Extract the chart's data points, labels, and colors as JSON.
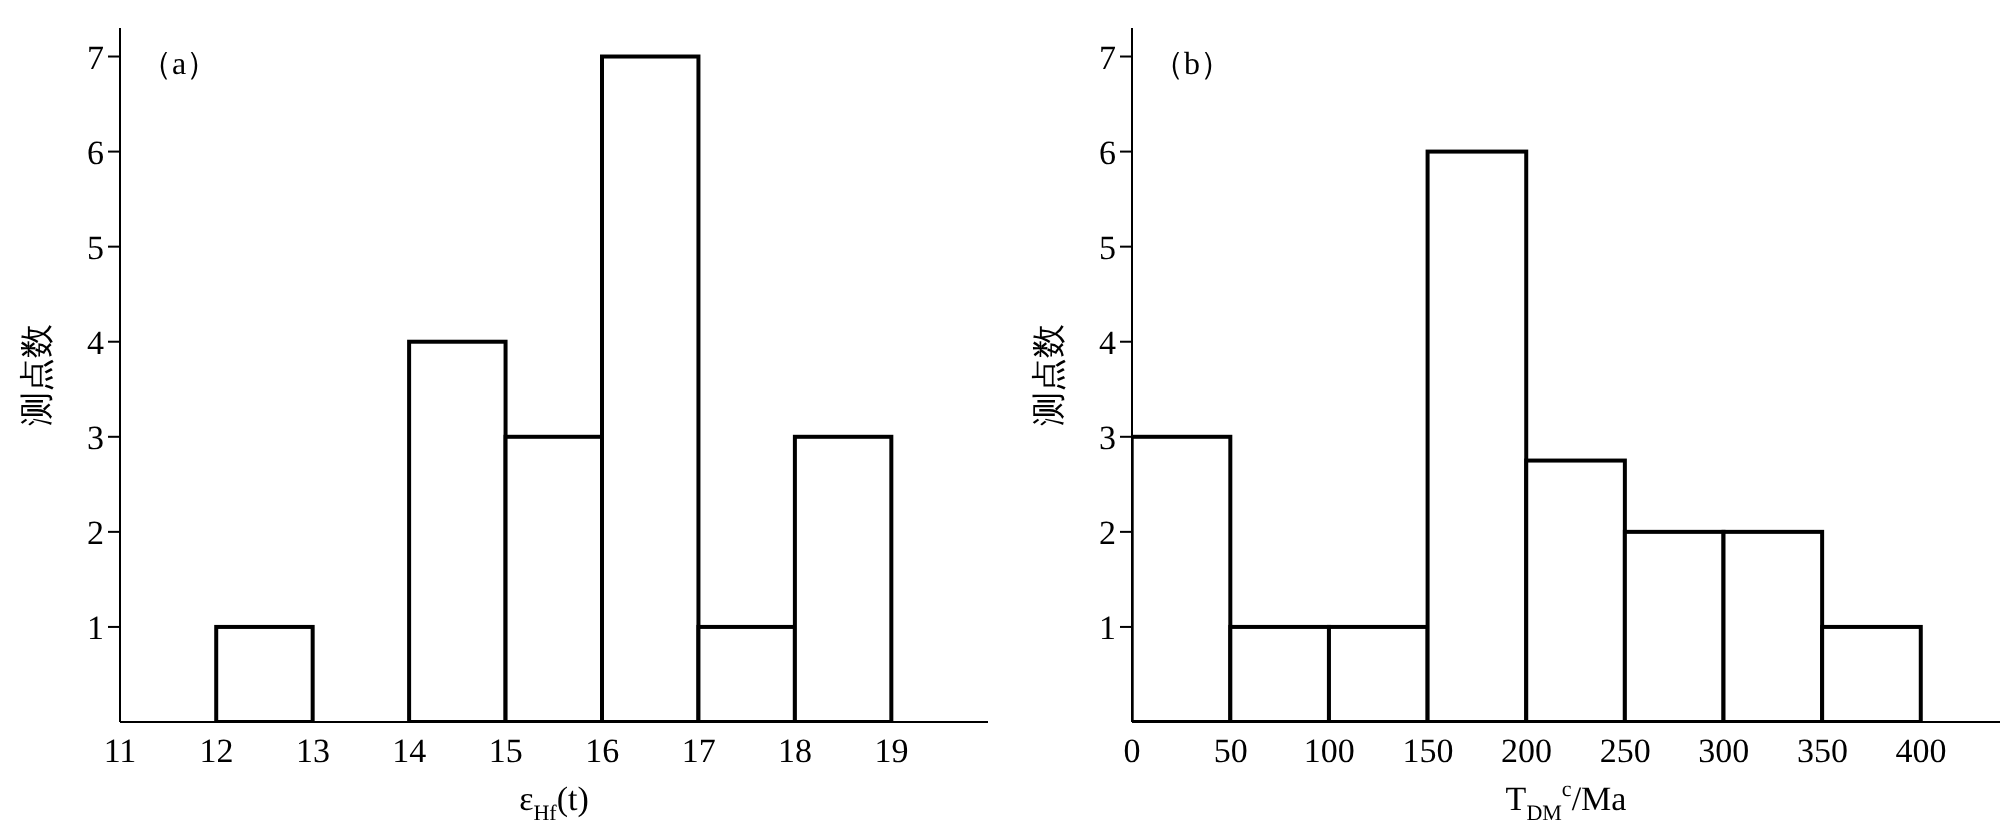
{
  "chart_data": [
    {
      "type": "histogram",
      "annotations": [
        "（a）"
      ],
      "xlabel": "ε$_{Hf}$(t)",
      "ylabel": "测点数",
      "bins": [
        12,
        13,
        14,
        15,
        16,
        17,
        18,
        19
      ],
      "values": [
        1,
        0,
        4,
        3,
        7,
        1,
        3
      ],
      "color": "#ffffff",
      "xlim": [
        11,
        20
      ],
      "xticks": [
        11,
        12,
        13,
        14,
        15,
        16,
        17,
        18,
        19
      ],
      "ylim": [
        0,
        7.3
      ],
      "yticks": [
        1,
        2,
        3,
        4,
        5,
        6,
        7
      ]
    },
    {
      "type": "histogram",
      "annotations": [
        "（b）"
      ],
      "xlabel": "T$_{DM}$$^{c}$/Ma",
      "ylabel": "测点数",
      "bins": [
        0,
        50,
        100,
        150,
        200,
        250,
        300,
        350,
        400
      ],
      "values": [
        3,
        1,
        1,
        6,
        2.75,
        2,
        2,
        1
      ],
      "color": "#ffffff",
      "xlim": [
        0,
        440
      ],
      "xticks": [
        0,
        50,
        100,
        150,
        200,
        250,
        300,
        350,
        400
      ],
      "ylim": [
        0,
        7.3
      ],
      "yticks": [
        1,
        2,
        3,
        4,
        5,
        6,
        7
      ]
    }
  ]
}
